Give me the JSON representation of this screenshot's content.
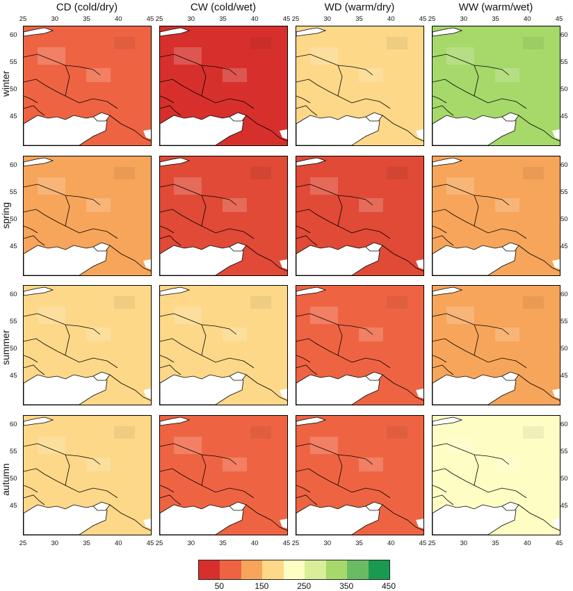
{
  "columns": [
    "CD (cold/dry)",
    "CW (cold/wet)",
    "WD (warm/dry)",
    "WW (warm/wet)"
  ],
  "rows": [
    "winter",
    "spring",
    "summer",
    "autumn"
  ],
  "x_ticks": [
    "25",
    "30",
    "35",
    "40",
    "45"
  ],
  "y_ticks": [
    "60",
    "55",
    "50",
    "45"
  ],
  "legend": {
    "colors": [
      "#d7302c",
      "#ee6442",
      "#f7a55a",
      "#fcd888",
      "#fefdc4",
      "#d8ee98",
      "#a6d86a",
      "#69bc63",
      "#1a9a50"
    ],
    "labels": [
      "50",
      "150",
      "250",
      "350",
      "450"
    ]
  },
  "panels": [
    [
      "#ee6442",
      "#d7302c",
      "#fcd888",
      "#a6d86a"
    ],
    [
      "#f7a55a",
      "#e04a36",
      "#e04a36",
      "#f7a55a"
    ],
    [
      "#fcd888",
      "#fcd888",
      "#ee6442",
      "#f7a55a"
    ],
    [
      "#fcd888",
      "#ee6442",
      "#ee6442",
      "#fefdc4"
    ]
  ]
}
